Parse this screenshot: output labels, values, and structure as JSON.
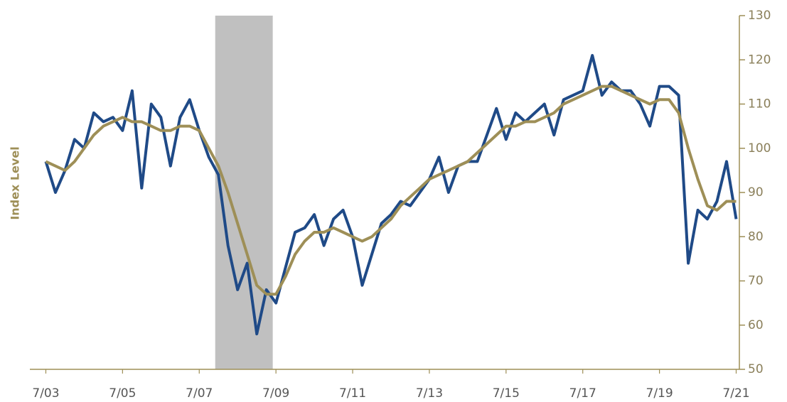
{
  "chart_data": {
    "type": "line",
    "y_axis_label": "Index Level",
    "y_axis_side": "right",
    "shaded_range": [
      "12/07",
      "6/09"
    ],
    "shade_color": "#c0c0c0",
    "xlim": [
      "2/03",
      "8/21"
    ],
    "xticks": [
      "7/03",
      "7/05",
      "7/07",
      "7/09",
      "7/11",
      "7/13",
      "7/15",
      "7/17",
      "7/19",
      "7/21"
    ],
    "ylim": [
      50,
      130
    ],
    "yticks": [
      50,
      60,
      70,
      80,
      90,
      100,
      110,
      120,
      130
    ],
    "x": [
      "7/03",
      "10/03",
      "1/04",
      "4/04",
      "7/04",
      "10/04",
      "1/05",
      "4/05",
      "7/05",
      "10/05",
      "1/06",
      "4/06",
      "7/06",
      "10/06",
      "1/07",
      "4/07",
      "7/07",
      "10/07",
      "1/08",
      "4/08",
      "7/08",
      "10/08",
      "1/09",
      "4/09",
      "7/09",
      "10/09",
      "1/10",
      "4/10",
      "7/10",
      "10/10",
      "1/11",
      "4/11",
      "7/11",
      "10/11",
      "1/12",
      "4/12",
      "7/12",
      "10/12",
      "1/13",
      "4/13",
      "7/13",
      "10/13",
      "1/14",
      "4/14",
      "7/14",
      "10/14",
      "1/15",
      "4/15",
      "7/15",
      "10/15",
      "1/16",
      "4/16",
      "7/16",
      "10/16",
      "1/17",
      "4/17",
      "7/17",
      "10/17",
      "1/18",
      "4/18",
      "7/18",
      "10/18",
      "1/19",
      "4/19",
      "7/19",
      "10/19",
      "1/20",
      "4/20",
      "7/20",
      "10/20",
      "1/21",
      "4/21",
      "7/21"
    ],
    "series": [
      {
        "color": "#1f4a87",
        "values": [
          97,
          90,
          95,
          102,
          100,
          108,
          106,
          107,
          104,
          113,
          91,
          110,
          107,
          96,
          107,
          111,
          104,
          98,
          94,
          78,
          68,
          74,
          58,
          68,
          65,
          73,
          81,
          82,
          85,
          78,
          84,
          86,
          80,
          69,
          76,
          83,
          85,
          88,
          87,
          90,
          93,
          98,
          90,
          96,
          97,
          97,
          103,
          109,
          102,
          108,
          106,
          108,
          110,
          103,
          111,
          112,
          113,
          121,
          112,
          115,
          113,
          113,
          110,
          105,
          114,
          114,
          112,
          74,
          86,
          84,
          88,
          97,
          84
        ]
      },
      {
        "color": "#9e8f57",
        "values": [
          97,
          96,
          95,
          97,
          100,
          103,
          105,
          106,
          107,
          106,
          106,
          105,
          104,
          104,
          105,
          105,
          104,
          100,
          96,
          90,
          83,
          76,
          69,
          67,
          67,
          71,
          76,
          79,
          81,
          81,
          82,
          81,
          80,
          79,
          80,
          82,
          84,
          87,
          89,
          91,
          93,
          94,
          95,
          96,
          97,
          99,
          101,
          103,
          105,
          105,
          106,
          106,
          107,
          108,
          110,
          111,
          112,
          113,
          114,
          114,
          113,
          112,
          111,
          110,
          111,
          111,
          108,
          100,
          93,
          87,
          86,
          88,
          88
        ]
      }
    ]
  }
}
